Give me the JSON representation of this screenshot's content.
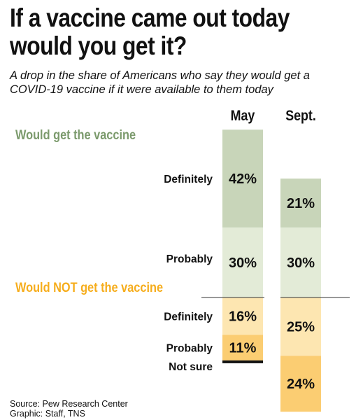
{
  "title_line1": "If a vaccine came out today",
  "title_line2": "would you get it?",
  "subtitle_line1": "A drop in the share of Americans who say they would get a",
  "subtitle_line2": "COVID-19 vaccine if it were available to them today",
  "source_line1": "Source: Pew Research Center",
  "source_line2": "Graphic: Staff, TNS",
  "chart_data": {
    "type": "bar",
    "stacked": true,
    "baseline": "diverging between get and not-get groups",
    "columns": [
      "May",
      "Sept."
    ],
    "groups": [
      {
        "label": "Would get the vaccine",
        "color": "#7b9a6c"
      },
      {
        "label": "Would NOT get the vaccine",
        "color": "#f6ad1c"
      }
    ],
    "segments": [
      {
        "group": 0,
        "label": "Definitely",
        "values": [
          42,
          21
        ],
        "value_labels": [
          "42%",
          "21%"
        ],
        "color": "#c8d5b9"
      },
      {
        "group": 0,
        "label": "Probably",
        "values": [
          30,
          30
        ],
        "value_labels": [
          "30%",
          "30%"
        ],
        "color": "#e3ebd7"
      },
      {
        "group": 1,
        "label": "Definitely",
        "values": [
          16,
          25
        ],
        "value_labels": [
          "16%",
          "25%"
        ],
        "color": "#fde6b1"
      },
      {
        "group": 1,
        "label": "Probably",
        "values": [
          11,
          24
        ],
        "value_labels": [
          "11%",
          "24%"
        ],
        "color": "#fbcd72"
      },
      {
        "group": 1,
        "label": "Not sure",
        "values": [
          1,
          0
        ],
        "value_labels": [
          "",
          ""
        ],
        "color": "#111111"
      }
    ]
  }
}
